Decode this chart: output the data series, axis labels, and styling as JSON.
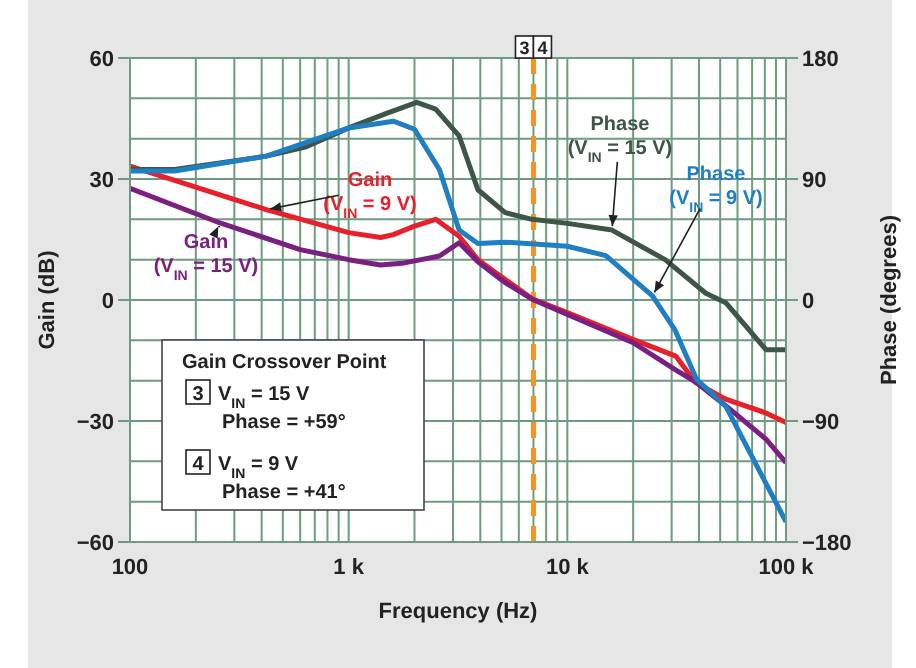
{
  "chart_data": {
    "type": "line",
    "xlabel": "Frequency (Hz)",
    "ylabel": "Gain (dB)",
    "y2label": "Phase (degrees)",
    "log": "x",
    "xlim": [
      100,
      100000
    ],
    "xticks": [
      100,
      {
        "value": 1000,
        "label": "1 k"
      },
      {
        "value": 10000,
        "label": "10 k"
      },
      {
        "value": 100000,
        "label": "100 k"
      }
    ],
    "ylim": [
      -60,
      60
    ],
    "yticks": [
      60,
      30,
      0,
      -30,
      -60
    ],
    "y2lim": [
      -180,
      180
    ],
    "y2ticks": [
      180,
      90,
      0,
      -90,
      -180
    ],
    "grid": true,
    "series": [
      {
        "name": "Gain (V$_{IN}$ = 9 V)",
        "color": "#e8202a",
        "x": [
          100,
          420,
          1000,
          1400,
          1600,
          2000,
          2500,
          3200,
          3900,
          5200,
          6900,
          10000,
          19800,
          31300,
          38700,
          53000,
          80000,
          100000
        ],
        "values": [
          33.2,
          22.4,
          16.7,
          15.5,
          16.2,
          18.3,
          20,
          15.8,
          10,
          5.1,
          0.3,
          -3.1,
          -9.7,
          -13.9,
          -20.5,
          -24.6,
          -27.9,
          -30.4
        ]
      },
      {
        "name": "Gain (V$_{IN}$ = 15 V)",
        "color": "#7b1f82",
        "x": [
          100,
          258,
          600,
          1000,
          1400,
          1800,
          2600,
          3200,
          3900,
          5200,
          6900,
          10000,
          20000,
          31000,
          39000,
          53000,
          81000,
          100000
        ],
        "values": [
          27.7,
          19.1,
          12.5,
          10,
          8.7,
          9.2,
          10.9,
          14.2,
          9.5,
          4.3,
          0.2,
          -3.6,
          -10.6,
          -17.2,
          -20.5,
          -26.2,
          -34.5,
          -40.3
        ]
      },
      {
        "name": "Phase (V$_{IN}$ = 15 V)",
        "color": "#3e5648",
        "axis": "y2",
        "x": [
          100,
          160,
          420,
          640,
          1000,
          1500,
          2050,
          2500,
          3200,
          3900,
          5200,
          6900,
          10000,
          16000,
          28000,
          43000,
          53000,
          81000,
          100000
        ],
        "values": [
          97,
          97,
          107,
          114,
          128,
          139,
          147,
          142,
          122,
          82,
          65,
          60,
          57,
          52,
          30,
          5,
          -2,
          -37,
          -37
        ]
      },
      {
        "name": "Phase (V$_{IN}$ = 9 V)",
        "color": "#1f7fc4",
        "axis": "y2",
        "x": [
          100,
          160,
          420,
          1000,
          1600,
          2000,
          2600,
          3200,
          3900,
          5200,
          10000,
          15000,
          24500,
          31000,
          39000,
          53000,
          100000
        ],
        "values": [
          96,
          96,
          107,
          128,
          133,
          127,
          97,
          52,
          42,
          43,
          40,
          33,
          3,
          -22,
          -59,
          -79,
          -165
        ]
      }
    ],
    "ref_lines": [
      {
        "axis": "x",
        "value": 7000,
        "color": "#f7941d",
        "line_style": "dashed"
      }
    ],
    "annotations": [
      "3",
      "4",
      "Gain Crossover Point",
      "3",
      "V$_{IN}$ = 15 V",
      "Phase = +59°",
      "4",
      "V$_{IN}$ = 9 V",
      "Phase = +41°"
    ]
  }
}
